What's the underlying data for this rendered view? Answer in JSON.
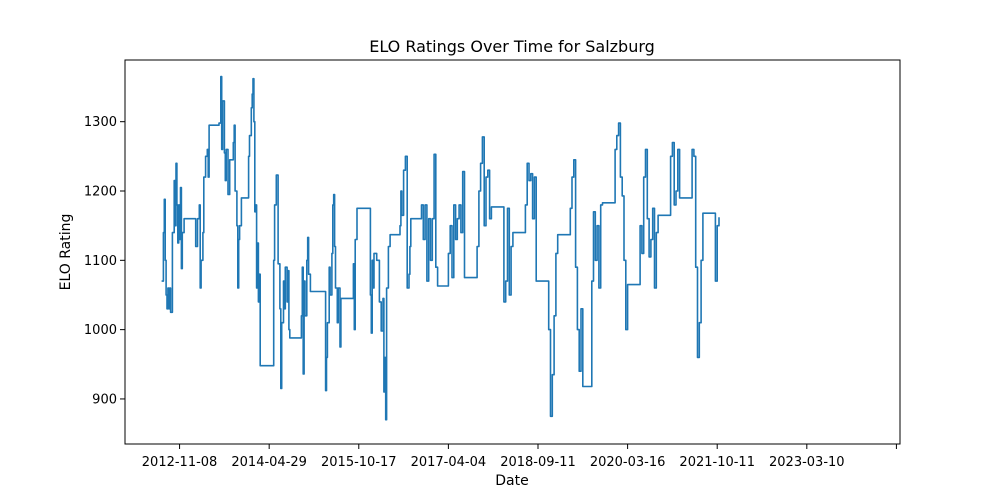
{
  "chart_data": {
    "type": "line",
    "title": "ELO Ratings Over Time for Salzburg",
    "xlabel": "Date",
    "ylabel": "ELO Rating",
    "x_tick_labels": [
      "2012-11-08",
      "2014-04-29",
      "2015-10-17",
      "2017-04-04",
      "2018-09-11",
      "2020-03-16",
      "2021-10-11",
      "2023-03-10",
      ""
    ],
    "x_ticks": [
      0,
      1,
      2,
      3,
      4,
      5,
      6,
      7,
      8
    ],
    "xlim": [
      -0.609,
      8.04
    ],
    "y_ticks": [
      900,
      1000,
      1100,
      1200,
      1300
    ],
    "ylim": [
      835,
      1389
    ],
    "grid": false,
    "line_color": "#1f77b4",
    "series": [
      {
        "name": "Salzburg",
        "points": [
          [
            -0.2,
            1070
          ],
          [
            -0.18,
            1140
          ],
          [
            -0.17,
            1188
          ],
          [
            -0.16,
            1100
          ],
          [
            -0.15,
            1050
          ],
          [
            -0.14,
            1030
          ],
          [
            -0.13,
            1060
          ],
          [
            -0.12,
            1030
          ],
          [
            -0.11,
            1060
          ],
          [
            -0.1,
            1025
          ],
          [
            -0.08,
            1140
          ],
          [
            -0.06,
            1215
          ],
          [
            -0.05,
            1150
          ],
          [
            -0.04,
            1240
          ],
          [
            -0.03,
            1180
          ],
          [
            -0.02,
            1125
          ],
          [
            -0.01,
            1180
          ],
          [
            0.0,
            1130
          ],
          [
            0.01,
            1205
          ],
          [
            0.02,
            1088
          ],
          [
            0.03,
            1140
          ],
          [
            0.05,
            1160
          ],
          [
            0.17,
            1160
          ],
          [
            0.18,
            1120
          ],
          [
            0.2,
            1160
          ],
          [
            0.22,
            1180
          ],
          [
            0.23,
            1060
          ],
          [
            0.24,
            1100
          ],
          [
            0.26,
            1140
          ],
          [
            0.27,
            1220
          ],
          [
            0.29,
            1250
          ],
          [
            0.31,
            1260
          ],
          [
            0.32,
            1220
          ],
          [
            0.33,
            1295
          ],
          [
            0.44,
            1298
          ],
          [
            0.46,
            1365
          ],
          [
            0.47,
            1260
          ],
          [
            0.48,
            1330
          ],
          [
            0.5,
            1255
          ],
          [
            0.51,
            1215
          ],
          [
            0.52,
            1260
          ],
          [
            0.54,
            1195
          ],
          [
            0.56,
            1245
          ],
          [
            0.6,
            1270
          ],
          [
            0.61,
            1295
          ],
          [
            0.62,
            1200
          ],
          [
            0.64,
            1150
          ],
          [
            0.65,
            1060
          ],
          [
            0.66,
            1130
          ],
          [
            0.67,
            1150
          ],
          [
            0.69,
            1190
          ],
          [
            0.76,
            1190
          ],
          [
            0.77,
            1250
          ],
          [
            0.78,
            1280
          ],
          [
            0.8,
            1320
          ],
          [
            0.81,
            1340
          ],
          [
            0.82,
            1362
          ],
          [
            0.83,
            1300
          ],
          [
            0.84,
            1170
          ],
          [
            0.85,
            1180
          ],
          [
            0.86,
            1060
          ],
          [
            0.87,
            1125
          ],
          [
            0.88,
            1040
          ],
          [
            0.89,
            1080
          ],
          [
            0.9,
            948
          ],
          [
            1.03,
            948
          ],
          [
            1.05,
            1100
          ],
          [
            1.06,
            1180
          ],
          [
            1.08,
            1223
          ],
          [
            1.1,
            1095
          ],
          [
            1.12,
            1030
          ],
          [
            1.13,
            915
          ],
          [
            1.14,
            1010
          ],
          [
            1.16,
            1070
          ],
          [
            1.17,
            1030
          ],
          [
            1.18,
            1090
          ],
          [
            1.2,
            1040
          ],
          [
            1.21,
            1085
          ],
          [
            1.22,
            1000
          ],
          [
            1.23,
            988
          ],
          [
            1.35,
            988
          ],
          [
            1.36,
            1020
          ],
          [
            1.37,
            1090
          ],
          [
            1.38,
            936
          ],
          [
            1.39,
            1070
          ],
          [
            1.4,
            1020
          ],
          [
            1.42,
            1100
          ],
          [
            1.43,
            1133
          ],
          [
            1.44,
            1080
          ],
          [
            1.46,
            1055
          ],
          [
            1.62,
            1055
          ],
          [
            1.63,
            912
          ],
          [
            1.64,
            960
          ],
          [
            1.65,
            1010
          ],
          [
            1.67,
            1090
          ],
          [
            1.68,
            1050
          ],
          [
            1.7,
            1110
          ],
          [
            1.71,
            1180
          ],
          [
            1.72,
            1195
          ],
          [
            1.73,
            1120
          ],
          [
            1.74,
            1060
          ],
          [
            1.76,
            1010
          ],
          [
            1.77,
            1060
          ],
          [
            1.79,
            975
          ],
          [
            1.8,
            1045
          ],
          [
            1.93,
            1045
          ],
          [
            1.94,
            1095
          ],
          [
            1.95,
            1000
          ],
          [
            1.96,
            1130
          ],
          [
            1.98,
            1175
          ],
          [
            2.12,
            1175
          ],
          [
            2.13,
            1050
          ],
          [
            2.14,
            995
          ],
          [
            2.15,
            1100
          ],
          [
            2.16,
            1060
          ],
          [
            2.17,
            1110
          ],
          [
            2.2,
            1100
          ],
          [
            2.23,
            1040
          ],
          [
            2.25,
            998
          ],
          [
            2.27,
            1045
          ],
          [
            2.28,
            910
          ],
          [
            2.29,
            960
          ],
          [
            2.3,
            870
          ],
          [
            2.31,
            1060
          ],
          [
            2.33,
            1120
          ],
          [
            2.35,
            1137
          ],
          [
            2.44,
            1137
          ],
          [
            2.46,
            1150
          ],
          [
            2.47,
            1200
          ],
          [
            2.48,
            1165
          ],
          [
            2.5,
            1230
          ],
          [
            2.52,
            1250
          ],
          [
            2.54,
            1060
          ],
          [
            2.56,
            1080
          ],
          [
            2.57,
            1120
          ],
          [
            2.58,
            1160
          ],
          [
            2.68,
            1160
          ],
          [
            2.7,
            1180
          ],
          [
            2.72,
            1130
          ],
          [
            2.74,
            1180
          ],
          [
            2.76,
            1070
          ],
          [
            2.78,
            1160
          ],
          [
            2.8,
            1100
          ],
          [
            2.82,
            1160
          ],
          [
            2.84,
            1253
          ],
          [
            2.86,
            1090
          ],
          [
            2.88,
            1063
          ],
          [
            2.98,
            1063
          ],
          [
            3.0,
            1110
          ],
          [
            3.02,
            1150
          ],
          [
            3.04,
            1075
          ],
          [
            3.06,
            1180
          ],
          [
            3.08,
            1130
          ],
          [
            3.1,
            1160
          ],
          [
            3.12,
            1180
          ],
          [
            3.14,
            1140
          ],
          [
            3.16,
            1228
          ],
          [
            3.18,
            1075
          ],
          [
            3.3,
            1075
          ],
          [
            3.32,
            1120
          ],
          [
            3.34,
            1200
          ],
          [
            3.36,
            1240
          ],
          [
            3.38,
            1278
          ],
          [
            3.4,
            1150
          ],
          [
            3.42,
            1220
          ],
          [
            3.44,
            1230
          ],
          [
            3.46,
            1160
          ],
          [
            3.48,
            1177
          ],
          [
            3.6,
            1177
          ],
          [
            3.62,
            1040
          ],
          [
            3.64,
            1070
          ],
          [
            3.66,
            1175
          ],
          [
            3.68,
            1050
          ],
          [
            3.7,
            1120
          ],
          [
            3.72,
            1140
          ],
          [
            3.84,
            1140
          ],
          [
            3.86,
            1180
          ],
          [
            3.88,
            1240
          ],
          [
            3.9,
            1215
          ],
          [
            3.92,
            1225
          ],
          [
            3.94,
            1160
          ],
          [
            3.96,
            1220
          ],
          [
            3.98,
            1070
          ],
          [
            4.1,
            1070
          ],
          [
            4.12,
            1000
          ],
          [
            4.14,
            875
          ],
          [
            4.16,
            935
          ],
          [
            4.18,
            1020
          ],
          [
            4.2,
            1110
          ],
          [
            4.22,
            1137
          ],
          [
            4.34,
            1137
          ],
          [
            4.36,
            1175
          ],
          [
            4.38,
            1220
          ],
          [
            4.4,
            1245
          ],
          [
            4.42,
            1090
          ],
          [
            4.44,
            1000
          ],
          [
            4.46,
            940
          ],
          [
            4.48,
            1030
          ],
          [
            4.5,
            918
          ],
          [
            4.58,
            918
          ],
          [
            4.6,
            1070
          ],
          [
            4.62,
            1170
          ],
          [
            4.64,
            1100
          ],
          [
            4.66,
            1150
          ],
          [
            4.68,
            1060
          ],
          [
            4.7,
            1180
          ],
          [
            4.72,
            1183
          ],
          [
            4.84,
            1183
          ],
          [
            4.86,
            1260
          ],
          [
            4.88,
            1280
          ],
          [
            4.9,
            1298
          ],
          [
            4.92,
            1220
          ],
          [
            4.94,
            1193
          ],
          [
            4.96,
            1100
          ],
          [
            4.98,
            1000
          ],
          [
            5.0,
            1065
          ],
          [
            5.12,
            1065
          ],
          [
            5.14,
            1150
          ],
          [
            5.16,
            1110
          ],
          [
            5.18,
            1220
          ],
          [
            5.2,
            1260
          ],
          [
            5.22,
            1160
          ],
          [
            5.24,
            1105
          ],
          [
            5.26,
            1130
          ],
          [
            5.28,
            1175
          ],
          [
            5.3,
            1060
          ],
          [
            5.32,
            1140
          ],
          [
            5.34,
            1165
          ],
          [
            5.46,
            1165
          ],
          [
            5.48,
            1250
          ],
          [
            5.5,
            1270
          ],
          [
            5.52,
            1180
          ],
          [
            5.54,
            1200
          ],
          [
            5.56,
            1260
          ],
          [
            5.58,
            1190
          ],
          [
            5.7,
            1190
          ],
          [
            5.72,
            1260
          ],
          [
            5.74,
            1250
          ],
          [
            5.76,
            1090
          ],
          [
            5.78,
            960
          ],
          [
            5.8,
            1010
          ],
          [
            5.82,
            1100
          ],
          [
            5.84,
            1168
          ],
          [
            5.96,
            1168
          ],
          [
            5.98,
            1070
          ],
          [
            6.0,
            1150
          ],
          [
            6.02,
            1162
          ]
        ]
      }
    ]
  }
}
